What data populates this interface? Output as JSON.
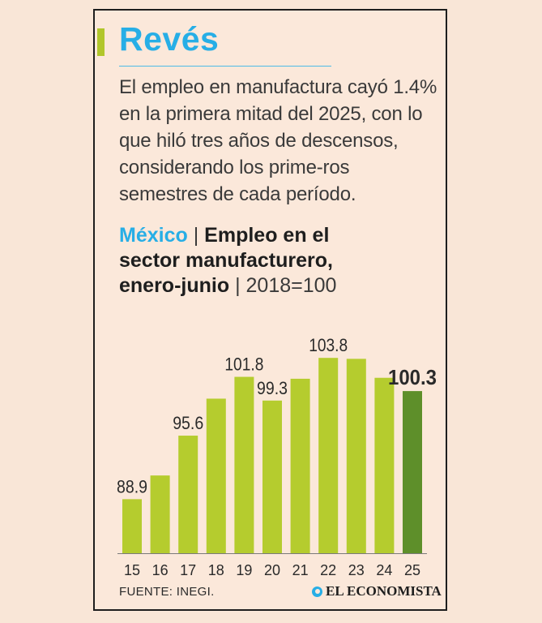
{
  "header": {
    "title": "Revés",
    "intro": "El empleo en manufactura cayó 1.4% en la primera mitad del 2025, con lo que hiló tres años de descensos, considerando los prime-ros semestres de cada período."
  },
  "chart_heading": {
    "country": "México",
    "separator": "|",
    "line1": "Empleo en el",
    "line2": "sector manufacturero,",
    "period": "enero-junio",
    "base": "2018=100"
  },
  "footer": {
    "source": "FUENTE: INEGI.",
    "brand": "EL ECONOMISTA"
  },
  "colors": {
    "bar": "#b5cc2e",
    "highlight_bar": "#5e8f2a",
    "accent": "#27aee6"
  },
  "chart_data": {
    "type": "bar",
    "title": "Empleo en el sector manufacturero, enero-junio",
    "subtitle": "2018=100",
    "categories": [
      "15",
      "16",
      "17",
      "18",
      "19",
      "20",
      "21",
      "22",
      "23",
      "24",
      "25"
    ],
    "values": [
      88.9,
      91.4,
      95.6,
      99.5,
      101.8,
      99.3,
      101.6,
      103.8,
      103.7,
      101.7,
      100.3
    ],
    "labels": [
      "88.9",
      "",
      "95.6",
      "",
      "101.8",
      "99.3",
      "",
      "103.8",
      "",
      "",
      "100.3"
    ],
    "highlight": "25",
    "ylim": [
      83.2,
      104.5
    ],
    "xlabel": "",
    "ylabel": ""
  }
}
